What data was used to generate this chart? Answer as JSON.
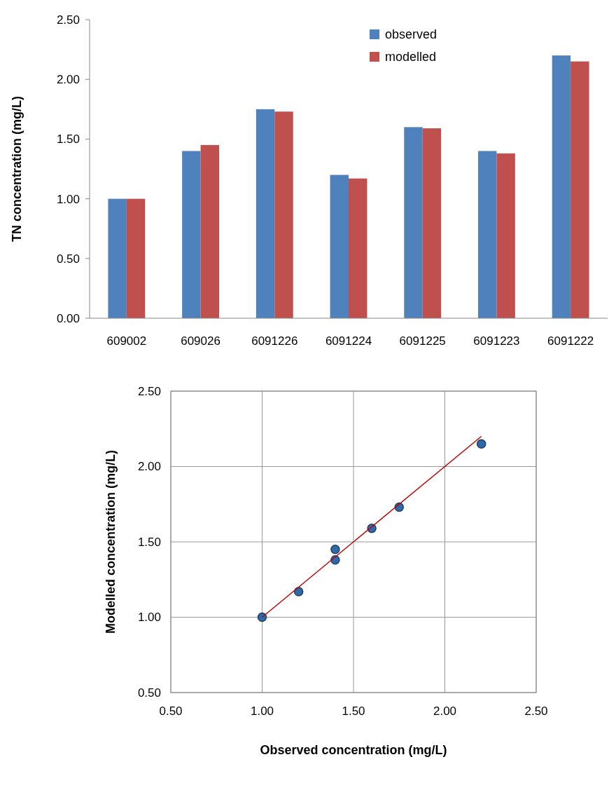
{
  "chart_data": [
    {
      "type": "bar",
      "ylabel": "TN concentration  (mg/L)",
      "categories": [
        "609002",
        "609026",
        "6091226",
        "6091224",
        "6091225",
        "6091223",
        "6091222"
      ],
      "series": [
        {
          "name": "observed",
          "color": "#4f81bd",
          "values": [
            1.0,
            1.4,
            1.75,
            1.2,
            1.6,
            1.4,
            2.2
          ]
        },
        {
          "name": "modelled",
          "color": "#c0504d",
          "values": [
            1.0,
            1.45,
            1.73,
            1.17,
            1.59,
            1.38,
            2.15
          ]
        }
      ],
      "ylim": [
        0,
        2.5
      ],
      "yticks": [
        {
          "value": 0,
          "label": "0.00"
        },
        {
          "value": 0.5,
          "label": "0.50"
        },
        {
          "value": 1,
          "label": "1.00"
        },
        {
          "value": 1.5,
          "label": "1.50"
        },
        {
          "value": 2,
          "label": "2.00"
        },
        {
          "value": 2.5,
          "label": "2.50"
        }
      ],
      "grid": false,
      "legend": "top right"
    },
    {
      "type": "scatter",
      "xlabel": "Observed concentration  (mg/L)",
      "ylabel": "Modelled concentration  (mg/L)",
      "marker": "circle",
      "series": [
        {
          "color": "#2f6aa8",
          "x": [
            1.0,
            1.4,
            1.75,
            1.2,
            1.6,
            1.4,
            2.2
          ],
          "values": [
            1.0,
            1.45,
            1.73,
            1.17,
            1.59,
            1.38,
            2.15
          ]
        },
        {
          "type": "line",
          "marker": "none",
          "color": "#c00000",
          "x": [
            1.0,
            2.2
          ],
          "values": [
            1.0,
            2.2
          ]
        }
      ],
      "xlim": [
        0.5,
        2.5
      ],
      "xticks": [
        {
          "value": 0.5,
          "label": "0.50"
        },
        {
          "value": 1,
          "label": "1.00"
        },
        {
          "value": 1.5,
          "label": "1.50"
        },
        {
          "value": 2,
          "label": "2.00"
        },
        {
          "value": 2.5,
          "label": "2.50"
        }
      ],
      "ylim": [
        0.5,
        2.5
      ],
      "yticks": [
        {
          "value": 0.5,
          "label": "0.50"
        },
        {
          "value": 1,
          "label": "1.00"
        },
        {
          "value": 1.5,
          "label": "1.50"
        },
        {
          "value": 2,
          "label": "2.00"
        },
        {
          "value": 2.5,
          "label": "2.50"
        }
      ],
      "grid": true,
      "legend": false
    }
  ]
}
